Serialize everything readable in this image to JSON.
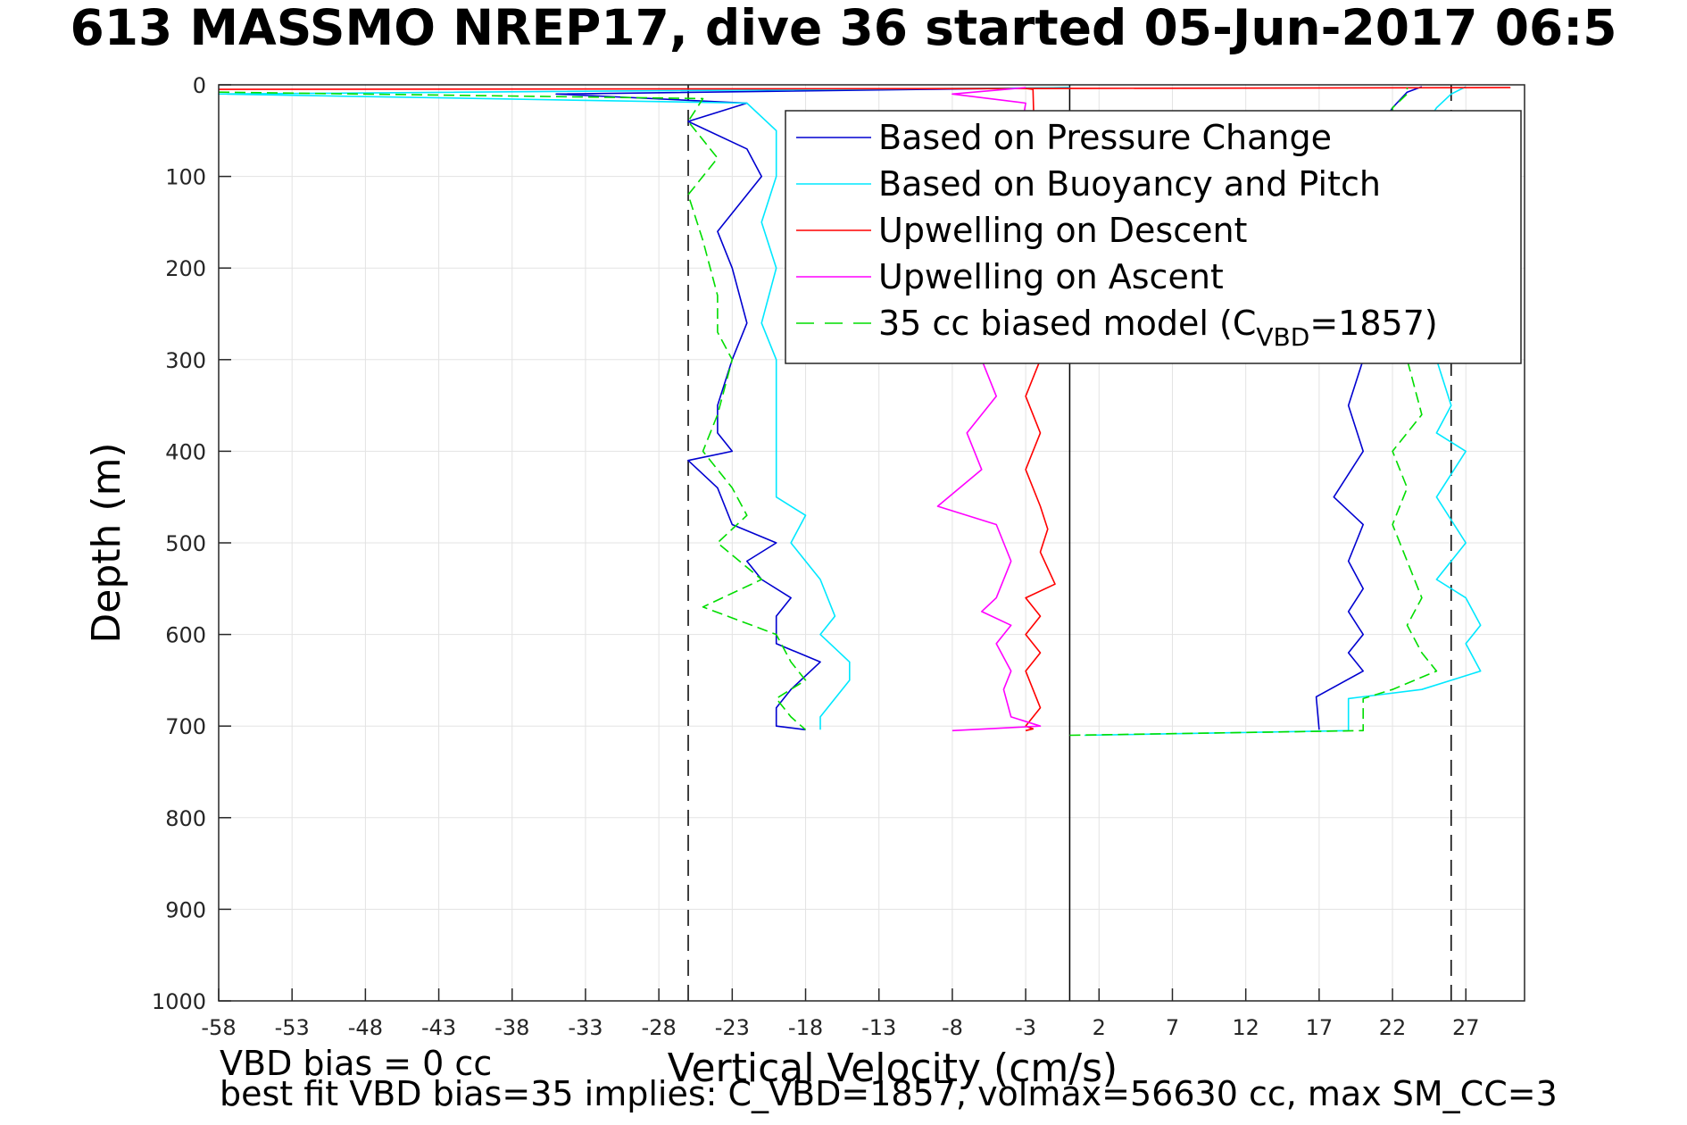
{
  "chart_data": {
    "type": "line",
    "title": "613 MASSMO NREP17, dive 36 started 05-Jun-2017 06:5",
    "xlabel": "Vertical Velocity (cm/s)",
    "ylabel": "Depth (m)",
    "xlim": [
      -58,
      31
    ],
    "ylim": [
      0,
      1000
    ],
    "y_reversed": true,
    "grid": true,
    "legend_position": "top-right",
    "xticks": [
      "-58",
      "-53",
      "-48",
      "-43",
      "-38",
      "-33",
      "-28",
      "-23",
      "-18",
      "-13",
      "-8",
      "-3",
      "2",
      "7",
      "12",
      "17",
      "22",
      "27"
    ],
    "yticks": [
      "0",
      "100",
      "200",
      "300",
      "400",
      "500",
      "600",
      "700",
      "800",
      "900",
      "1000"
    ],
    "reference_lines": [
      {
        "x": -26,
        "style": "dashed",
        "color": "#000000"
      },
      {
        "x": 0,
        "style": "solid",
        "color": "#000000"
      },
      {
        "x": 26,
        "style": "dashed",
        "color": "#000000"
      }
    ],
    "series": [
      {
        "name": "Based on Pressure Change",
        "color": "#0000d0",
        "style": "solid",
        "descent": {
          "x": [
            0,
            -35,
            -22,
            -26,
            -22,
            -21,
            -22,
            -24,
            -23,
            -22,
            -23,
            -24,
            -24,
            -23,
            -26,
            -24,
            -23,
            -20,
            -22,
            -21,
            -19,
            -20,
            -20,
            -17,
            -19,
            -20,
            -20,
            -18
          ],
          "y": [
            3,
            10,
            20,
            40,
            70,
            100,
            120,
            160,
            200,
            260,
            300,
            350,
            380,
            400,
            410,
            440,
            480,
            500,
            520,
            540,
            560,
            580,
            610,
            630,
            660,
            680,
            700,
            704
          ]
        },
        "ascent": {
          "x": [
            17,
            16.8,
            20,
            19,
            20,
            19,
            20,
            19,
            20,
            18,
            20,
            19,
            20,
            21,
            22,
            23,
            24
          ],
          "y": [
            704,
            668,
            640,
            620,
            600,
            575,
            550,
            520,
            480,
            450,
            400,
            350,
            300,
            50,
            25,
            8,
            2
          ]
        }
      },
      {
        "name": "Based on Buoyancy and Pitch",
        "color": "#00e8ff",
        "style": "solid",
        "descent": {
          "x": [
            0,
            -58,
            -22,
            -20,
            -20,
            -21,
            -20,
            -21,
            -20,
            -20,
            -20,
            -20,
            -18,
            -19,
            -17,
            -16,
            -17,
            -15,
            -15,
            -16,
            -17,
            -17
          ],
          "y": [
            3,
            10,
            20,
            50,
            100,
            150,
            200,
            260,
            300,
            350,
            400,
            450,
            470,
            500,
            540,
            580,
            600,
            630,
            650,
            670,
            690,
            704
          ]
        },
        "ascent": {
          "x": [
            1,
            19,
            19,
            24,
            28,
            27,
            28,
            27,
            25,
            27,
            25,
            27,
            25,
            26,
            25,
            24,
            25,
            26,
            27
          ],
          "y": [
            710,
            705,
            670,
            660,
            640,
            610,
            590,
            560,
            540,
            500,
            450,
            400,
            380,
            350,
            300,
            50,
            25,
            10,
            2
          ]
        }
      },
      {
        "name": "Upwelling on Descent",
        "color": "#ff0000",
        "style": "solid",
        "descent": {
          "x": [
            -58,
            0,
            30,
            -3,
            -2.5,
            -2,
            -3,
            -2,
            -3,
            -2,
            -1.5,
            -2,
            -1,
            -3,
            -2,
            -3,
            -2,
            -3,
            -2.5,
            -2,
            -3,
            -2.5,
            -3
          ],
          "y": [
            5,
            4,
            3,
            4,
            5,
            300,
            340,
            380,
            420,
            460,
            485,
            510,
            545,
            560,
            580,
            600,
            620,
            640,
            660,
            680,
            700,
            703,
            705
          ]
        },
        "ascent": {
          "x": [],
          "y": []
        }
      },
      {
        "name": "Upwelling on Ascent",
        "color": "#ff00ff",
        "style": "solid",
        "descent": {
          "x": [],
          "y": []
        },
        "ascent": {
          "x": [
            -8,
            -2,
            -4,
            -4.5,
            -4,
            -5,
            -4,
            -6,
            -5,
            -4,
            -5,
            -9,
            -6,
            -7,
            -5,
            -6,
            -3,
            -8,
            -3
          ],
          "y": [
            705,
            700,
            690,
            660,
            640,
            610,
            590,
            575,
            560,
            520,
            480,
            460,
            420,
            380,
            340,
            300,
            20,
            10,
            3
          ]
        }
      },
      {
        "name": "35 cc biased model (C_VBD=1857)",
        "legend_label": "35 cc biased model (C",
        "legend_subscript": "VBD",
        "legend_suffix": "=1857)",
        "color": "#00dd00",
        "style": "dashed",
        "descent": {
          "x": [
            -58,
            -25,
            -26,
            -24,
            -26,
            -25,
            -24,
            -24,
            -23,
            -24,
            -25,
            -23,
            -22,
            -24,
            -21,
            -25,
            -20,
            -19,
            -18,
            -20,
            -19,
            -18
          ],
          "y": [
            8,
            15,
            40,
            80,
            120,
            170,
            230,
            270,
            300,
            360,
            400,
            440,
            470,
            500,
            540,
            570,
            600,
            630,
            650,
            670,
            690,
            704
          ]
        },
        "ascent": {
          "x": [
            0,
            20,
            20,
            22,
            25,
            24,
            23,
            24,
            23,
            22,
            23,
            22,
            24,
            23,
            22,
            23,
            23
          ],
          "y": [
            710,
            705,
            670,
            660,
            640,
            620,
            590,
            560,
            520,
            480,
            440,
            400,
            360,
            300,
            25,
            10,
            3
          ]
        }
      }
    ]
  },
  "annotations": {
    "vbd_bias": "VBD bias = 0 cc",
    "best_fit": "best fit VBD bias=35 implies: C_VBD=1857, volmax=56630 cc, max SM_CC=3"
  }
}
